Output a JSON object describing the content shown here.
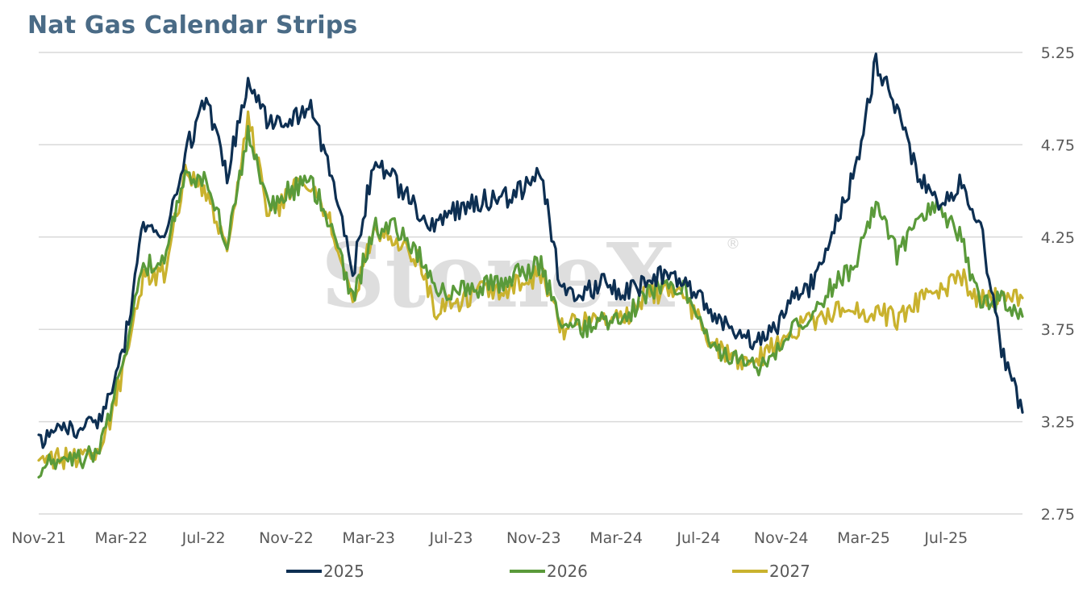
{
  "title": "Nat Gas Calendar Strips",
  "watermark": "StoneX",
  "watermark_mark": "®",
  "chart_data": {
    "type": "line",
    "title": "Nat Gas Calendar Strips",
    "xlabel": "",
    "ylabel": "",
    "ylim": [
      2.75,
      5.25
    ],
    "yticks": [
      "5.25",
      "4.75",
      "4.25",
      "3.75",
      "3.25",
      "2.75"
    ],
    "xticks": [
      "Nov-21",
      "Mar-22",
      "Jul-22",
      "Nov-22",
      "Mar-23",
      "Jul-23",
      "Nov-23",
      "Mar-24",
      "Jul-24",
      "Nov-24",
      "Mar-25",
      "Jul-25"
    ],
    "grid": "horizontal",
    "legend_position": "bottom",
    "x": [
      "Nov-21",
      "Dec-21",
      "Jan-22",
      "Feb-22",
      "Mar-22",
      "Apr-22",
      "May-22",
      "Jun-22",
      "Jul-22",
      "Aug-22",
      "Sep-22",
      "Oct-22",
      "Nov-22",
      "Dec-22",
      "Jan-23",
      "Feb-23",
      "Mar-23",
      "Apr-23",
      "May-23",
      "Jun-23",
      "Jul-23",
      "Aug-23",
      "Sep-23",
      "Oct-23",
      "Nov-23",
      "Dec-23",
      "Jan-24",
      "Feb-24",
      "Mar-24",
      "Apr-24",
      "May-24",
      "Jun-24",
      "Jul-24",
      "Aug-24",
      "Sep-24",
      "Oct-24",
      "Nov-24",
      "Dec-24",
      "Jan-25",
      "Feb-25",
      "Mar-25",
      "Apr-25",
      "May-25",
      "Jun-25",
      "Jul-25",
      "Aug-25",
      "Sep-25",
      "Oct-25"
    ],
    "series": [
      {
        "name": "2025",
        "color": "#0d2f52",
        "values": [
          3.15,
          3.22,
          3.22,
          3.28,
          3.6,
          4.3,
          4.25,
          4.7,
          5.0,
          4.6,
          5.1,
          4.85,
          4.9,
          4.95,
          4.6,
          4.05,
          4.65,
          4.55,
          4.4,
          4.3,
          4.4,
          4.45,
          4.45,
          4.5,
          4.6,
          3.95,
          3.95,
          4.0,
          3.95,
          4.0,
          4.05,
          4.0,
          3.85,
          3.75,
          3.7,
          3.72,
          3.9,
          4.0,
          4.3,
          4.6,
          5.2,
          4.95,
          4.6,
          4.4,
          4.55,
          4.3,
          3.65,
          3.3
        ]
      },
      {
        "name": "2026",
        "color": "#5a9a3a",
        "values": [
          3.0,
          3.05,
          3.05,
          3.12,
          3.55,
          4.1,
          4.1,
          4.6,
          4.55,
          4.2,
          4.8,
          4.4,
          4.5,
          4.55,
          4.3,
          3.9,
          4.3,
          4.3,
          4.2,
          3.95,
          3.95,
          3.97,
          4.0,
          4.05,
          4.1,
          3.75,
          3.75,
          3.8,
          3.8,
          3.95,
          4.0,
          3.95,
          3.7,
          3.6,
          3.55,
          3.58,
          3.75,
          3.85,
          4.0,
          4.1,
          4.45,
          4.15,
          4.35,
          4.4,
          4.25,
          3.9,
          3.9,
          3.82
        ]
      },
      {
        "name": "2027",
        "color": "#c9b22e",
        "values": [
          3.05,
          3.05,
          3.05,
          3.1,
          3.5,
          4.05,
          4.05,
          4.6,
          4.5,
          4.2,
          4.9,
          4.35,
          4.5,
          4.55,
          4.3,
          3.9,
          4.3,
          4.25,
          4.15,
          3.85,
          3.9,
          3.95,
          3.95,
          4.0,
          4.05,
          3.75,
          3.8,
          3.8,
          3.8,
          3.95,
          3.95,
          3.9,
          3.7,
          3.6,
          3.55,
          3.65,
          3.75,
          3.8,
          3.85,
          3.85,
          3.85,
          3.8,
          3.9,
          3.95,
          4.05,
          3.9,
          3.95,
          3.92
        ]
      }
    ]
  }
}
